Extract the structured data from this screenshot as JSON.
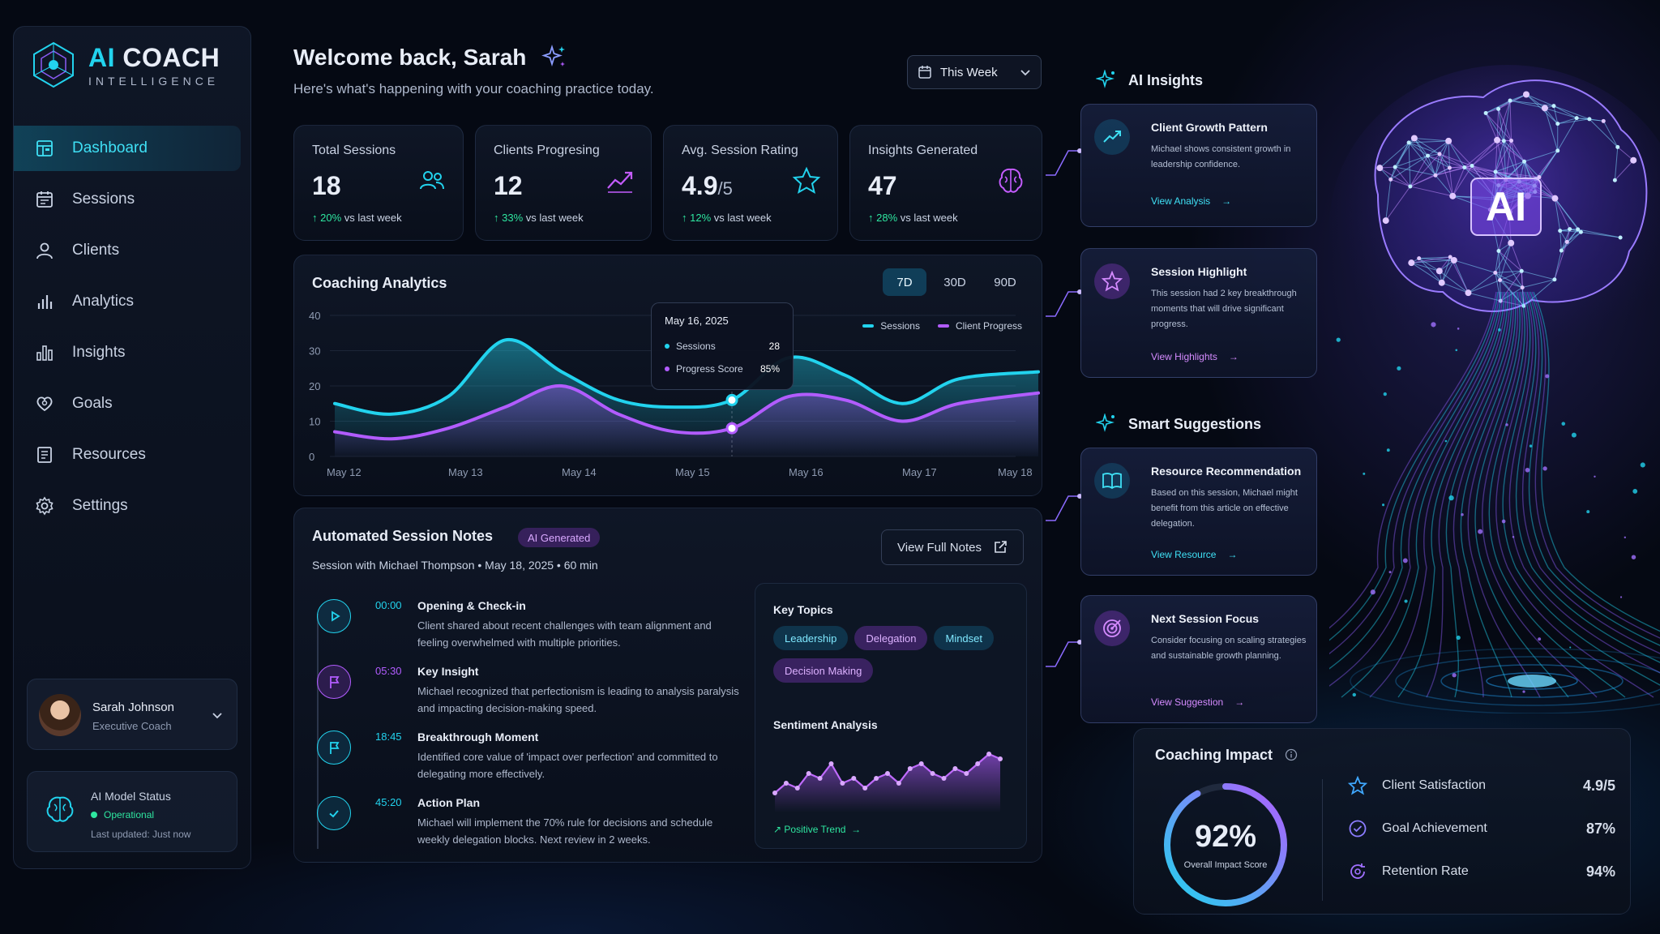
{
  "brand": {
    "ai": "AI",
    "coach": "COACH",
    "tagline": "INTELLIGENCE"
  },
  "nav": [
    {
      "label": "Dashboard",
      "icon": "dashboard-icon",
      "active": true
    },
    {
      "label": "Sessions",
      "icon": "calendar-icon"
    },
    {
      "label": "Clients",
      "icon": "user-icon"
    },
    {
      "label": "Analytics",
      "icon": "bar-chart-icon"
    },
    {
      "label": "Insights",
      "icon": "insights-icon"
    },
    {
      "label": "Goals",
      "icon": "heart-target-icon"
    },
    {
      "label": "Resources",
      "icon": "book-icon"
    },
    {
      "label": "Settings",
      "icon": "gear-icon"
    }
  ],
  "user": {
    "name": "Sarah Johnson",
    "role": "Executive Coach"
  },
  "ai_status": {
    "title": "AI Model Status",
    "status": "Operational",
    "updated": "Last updated: Just now"
  },
  "header": {
    "welcome": "Welcome back, Sarah",
    "subtitle": "Here's what's happening with your coaching practice today.",
    "range": "This Week"
  },
  "stats": [
    {
      "label": "Total Sessions",
      "value": "18",
      "suffix": "",
      "change": "20%",
      "change_text": " vs last week",
      "icon": "users-icon"
    },
    {
      "label": "Clients Progresing",
      "value": "12",
      "suffix": "",
      "change": "33%",
      "change_text": " vs last week",
      "icon": "trend-up-icon"
    },
    {
      "label": "Avg. Session Rating",
      "value": "4.9",
      "suffix": "/5",
      "change": "12%",
      "change_text": " vs last week",
      "icon": "star-icon"
    },
    {
      "label": "Insights Generated",
      "value": "47",
      "suffix": "",
      "change": "28%",
      "change_text": " vs last week",
      "icon": "brain-icon"
    }
  ],
  "analytics": {
    "title": "Coaching Analytics",
    "tabs": [
      "7D",
      "30D",
      "90D"
    ],
    "active_tab": "7D"
  },
  "chart_data": {
    "type": "area",
    "x": [
      "May 12",
      "May 13",
      "May 14",
      "May 15",
      "May 16",
      "May 17",
      "May 18"
    ],
    "ylim": [
      0,
      40
    ],
    "yticks": [
      0,
      10,
      20,
      30,
      40
    ],
    "legend": "top-right",
    "series": [
      {
        "name": "Sessions",
        "color": "#22d3ee",
        "x": [
          0,
          0.5,
          1,
          1.5,
          2,
          2.5,
          3,
          3.5,
          4,
          4.5,
          5,
          5.5,
          6.2
        ],
        "values": [
          15,
          12,
          17,
          33,
          24,
          16,
          14,
          16,
          28,
          23,
          15,
          22,
          24
        ]
      },
      {
        "name": "Client Progress",
        "color": "#b25cff",
        "x": [
          0,
          0.5,
          1,
          1.5,
          2,
          2.5,
          3,
          3.5,
          4,
          4.5,
          5,
          5.5,
          6.2
        ],
        "values": [
          7,
          5,
          8,
          14,
          20,
          12,
          7,
          8,
          17,
          16,
          10,
          15,
          18
        ]
      }
    ],
    "tooltip": {
      "date": "May 16, 2025",
      "rows": [
        {
          "label": "Sessions",
          "value": "28"
        },
        {
          "label": "Progress Score",
          "value": "85%"
        }
      ]
    }
  },
  "notes": {
    "title": "Automated Session Notes",
    "badge": "AI Generated",
    "meta": "Session with Michael Thompson  •  May 18, 2025  •  60 min",
    "full_button": "View Full Notes",
    "items": [
      {
        "time": "00:00",
        "title": "Opening & Check-in",
        "body": "Client shared about recent challenges with team alignment and feeling overwhelmed with multiple priorities.",
        "icon": "play-icon",
        "color": "#22d3ee"
      },
      {
        "time": "05:30",
        "title": "Key Insight",
        "body": "Michael recognized that perfectionism is leading to analysis paralysis and impacting decision-making speed.",
        "icon": "flag-icon",
        "color": "#b25cff"
      },
      {
        "time": "18:45",
        "title": "Breakthrough Moment",
        "body": "Identified core value of 'impact over perfection' and committed to delegating more effectively.",
        "icon": "flag-icon",
        "color": "#22d3ee"
      },
      {
        "time": "45:20",
        "title": "Action Plan",
        "body": "Michael will implement the 70% rule for decisions and schedule weekly delegation blocks. Next review in 2 weeks.",
        "icon": "check-icon",
        "color": "#22d3ee"
      }
    ],
    "key_topics_title": "Key Topics",
    "topics": [
      {
        "label": "Leadership",
        "style": "c"
      },
      {
        "label": "Delegation",
        "style": "p"
      },
      {
        "label": "Mindset",
        "style": "c"
      },
      {
        "label": "Decision Making",
        "style": "p"
      }
    ],
    "sentiment_title": "Sentiment Analysis",
    "sentiment_values": [
      3,
      5,
      4,
      7,
      6,
      9,
      5,
      6,
      4,
      6,
      7,
      5,
      8,
      9,
      7,
      6,
      8,
      7,
      9,
      11,
      10
    ],
    "trend": "Positive Trend"
  },
  "ai_insights": {
    "title": "AI Insights",
    "cards": [
      {
        "title": "Client Growth Pattern",
        "body": "Michael shows consistent growth in leadership confidence.",
        "action": "View Analysis",
        "icon": "trend-up-icon"
      },
      {
        "title": "Session Highlight",
        "body": "This session had 2 key breakthrough moments that will drive significant progress.",
        "action": "View Highlights",
        "icon": "star-icon"
      }
    ]
  },
  "smart_suggestions": {
    "title": "Smart Suggestions",
    "cards": [
      {
        "title": "Resource Recommendation",
        "body": "Based on this session, Michael might benefit from this article on effective delegation.",
        "action": "View Resource",
        "icon": "book-icon"
      },
      {
        "title": "Next Session Focus",
        "body": "Consider focusing on scaling strategies and sustainable growth planning.",
        "action": "View Suggestion",
        "icon": "target-icon"
      }
    ]
  },
  "brain_label": "AI",
  "impact": {
    "title": "Coaching Impact",
    "score": "92%",
    "score_value": 0.92,
    "score_label": "Overall Impact Score",
    "metrics": [
      {
        "label": "Client Satisfaction",
        "value": "4.9/5",
        "icon": "star-icon"
      },
      {
        "label": "Goal Achievement",
        "value": "87%",
        "icon": "check-circle-icon"
      },
      {
        "label": "Retention Rate",
        "value": "94%",
        "icon": "refresh-icon"
      }
    ]
  }
}
